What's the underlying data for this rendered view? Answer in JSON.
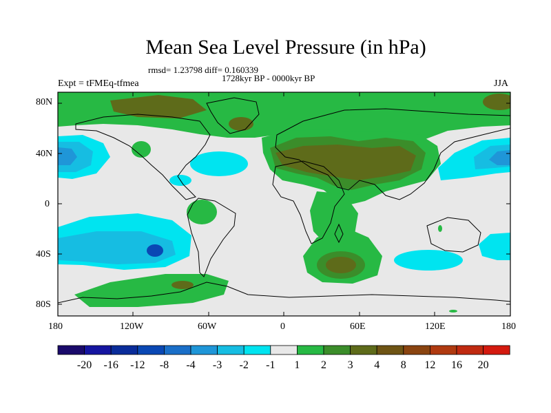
{
  "title": "Mean Sea Level Pressure (in hPa)",
  "stats": "rmsd= 1.23798 diff= 0.160339",
  "period": "1728kyr BP - 0000kyr BP",
  "experiment": "Expt = tFMEq-tfmea",
  "season": "JJA",
  "lat_labels": [
    "80N",
    "40N",
    "0",
    "40S",
    "80S"
  ],
  "lon_labels": [
    "180",
    "120W",
    "60W",
    "0",
    "60E",
    "120E",
    "180"
  ],
  "legend": {
    "colors": [
      "#1a0a6b",
      "#1515a0",
      "#0a2c9a",
      "#0a48b4",
      "#1a6fc8",
      "#1f96d8",
      "#16bde2",
      "#00e4f0",
      "#e8e8e8",
      "#27b944",
      "#3b8d2a",
      "#5e6b1a",
      "#6e5414",
      "#8a4410",
      "#b03a10",
      "#c02a10",
      "#d41a0f"
    ],
    "labels": [
      "-20",
      "-16",
      "-12",
      "-8",
      "-4",
      "-3",
      "-2",
      "-1",
      "1",
      "2",
      "3",
      "4",
      "8",
      "12",
      "16",
      "20"
    ]
  }
}
